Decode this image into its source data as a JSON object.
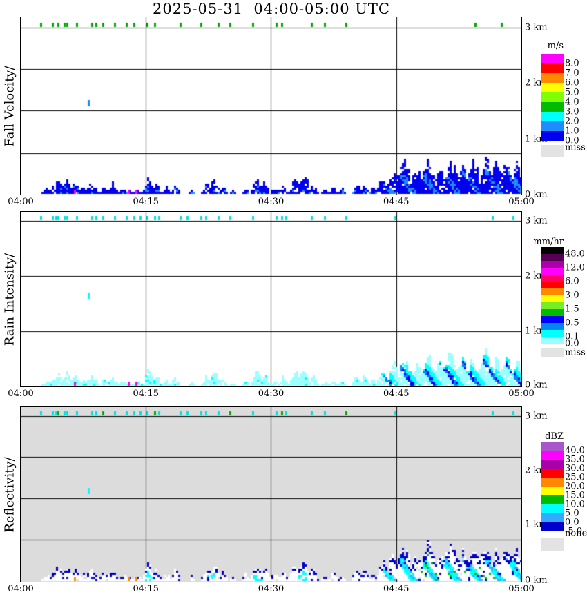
{
  "title": "2025-05-31  04:00-05:00 UTC",
  "x_axis": {
    "ticks": [
      "04:00",
      "04:15",
      "04:30",
      "04:45",
      "05:00"
    ]
  },
  "panels": [
    {
      "id": "fall-velocity",
      "label": "Fall Velocity/",
      "y_labels": [
        "3 km",
        "2 km",
        "1 km",
        "0 km"
      ],
      "legend": {
        "title": "m/s",
        "cells": [
          {
            "color": "#FF00FF",
            "label": "8.0"
          },
          {
            "color": "#FF0000",
            "label": "7.0"
          },
          {
            "color": "#FF8800",
            "label": "6.0"
          },
          {
            "color": "#FFFF00",
            "label": "5.0"
          },
          {
            "color": "#7FFF00",
            "label": "4.0"
          },
          {
            "color": "#00BB00",
            "label": "3.0"
          },
          {
            "color": "#00FFFF",
            "label": "2.0"
          },
          {
            "color": "#1C8CFF",
            "label": "1.0"
          },
          {
            "color": "#0000EE",
            "label": "0.0"
          }
        ],
        "missing": {
          "color": "#E3E3E3",
          "label": "miss"
        }
      }
    },
    {
      "id": "rain-intensity",
      "label": "Rain Intensity/",
      "y_labels": [
        "3 km",
        "2 km",
        "1 km",
        "0 km"
      ],
      "legend": {
        "title": "mm/hr",
        "cells": [
          {
            "color": "#000000",
            "label": "48.0"
          },
          {
            "color": "#550055",
            "label": ""
          },
          {
            "color": "#AA00AA",
            "label": "12.0"
          },
          {
            "color": "#FF00FF",
            "label": ""
          },
          {
            "color": "#FF0066",
            "label": "6.0"
          },
          {
            "color": "#FF0000",
            "label": ""
          },
          {
            "color": "#FF8800",
            "label": "3.0"
          },
          {
            "color": "#FFFF00",
            "label": ""
          },
          {
            "color": "#77EE22",
            "label": "1.5"
          },
          {
            "color": "#00BB00",
            "label": ""
          },
          {
            "color": "#0000FF",
            "label": "0.5"
          },
          {
            "color": "#0088EE",
            "label": ""
          },
          {
            "color": "#00FFFF",
            "label": "0.1"
          },
          {
            "color": "#99FFFF",
            "label": "0.0"
          }
        ],
        "missing": {
          "color": "#E3E3E3",
          "label": "miss"
        }
      }
    },
    {
      "id": "reflectivity",
      "label": "Reflectivity/",
      "y_labels": [
        "3 km",
        "2 km",
        "1 km",
        "0 km"
      ],
      "legend": {
        "title": "dBZ",
        "cells": [
          {
            "color": "#AA55CC",
            "label": "40.0"
          },
          {
            "color": "#FF00FF",
            "label": "35.0"
          },
          {
            "color": "#AA00AA",
            "label": "30.0"
          },
          {
            "color": "#FF0000",
            "label": "25.0"
          },
          {
            "color": "#FF8800",
            "label": "20.0"
          },
          {
            "color": "#FFFF00",
            "label": "15.0"
          },
          {
            "color": "#00BB00",
            "label": "10.0"
          },
          {
            "color": "#00FFFF",
            "label": "5.0"
          },
          {
            "color": "#33AAFF",
            "label": "0.0"
          },
          {
            "color": "#0000CC",
            "label": "-5.0"
          }
        ],
        "missing": {
          "color": "#E3E3E3",
          "label": "none"
        }
      }
    }
  ],
  "chart_data": {
    "type": "heatmap",
    "title": "2025-05-31  04:00-05:00 UTC",
    "x_axis": {
      "ticks": [
        "04:00",
        "04:15",
        "04:30",
        "04:45",
        "05:00"
      ],
      "range_min": [
        0,
        60
      ]
    },
    "y_axis": {
      "ticks": [
        "0 km",
        "1 km",
        "2 km",
        "3 km"
      ],
      "range_km": [
        0,
        3.2
      ]
    },
    "panels": [
      {
        "name": "Fall Velocity",
        "units": "m/s",
        "scale_values": [
          8.0,
          7.0,
          6.0,
          5.0,
          4.0,
          3.0,
          2.0,
          1.0,
          0.0
        ],
        "marker_color": "#00AA00",
        "top_markers_min": [
          2.3,
          3.7,
          4.4,
          5.1,
          5.5,
          6.6,
          8.4,
          8.9,
          9.8,
          11.2,
          12.6,
          13.5,
          15.1,
          16.0,
          19.0,
          21.5,
          23.6,
          25.0,
          27.7,
          30.5,
          31.2,
          34.8,
          36.3,
          38.9,
          54.4,
          57.5
        ]
      },
      {
        "name": "Rain Intensity",
        "units": "mm/hr",
        "scale_values": [
          48.0,
          12.0,
          6.0,
          3.0,
          1.5,
          0.5,
          0.1,
          0.0
        ],
        "marker_color": "#00E0E0",
        "top_markers_min": [
          2.3,
          3.7,
          4.1,
          4.4,
          5.1,
          5.5,
          6.6,
          8.4,
          8.9,
          9.8,
          11.2,
          12.6,
          13.5,
          14.2,
          15.1,
          16.0,
          16.5,
          19.0,
          19.9,
          21.5,
          22.1,
          23.6,
          25.0,
          27.7,
          30.5,
          31.2,
          31.7,
          34.8,
          36.3,
          38.9,
          44.8,
          56.4,
          58.9
        ]
      },
      {
        "name": "Reflectivity",
        "units": "dBZ",
        "scale_values": [
          40.0,
          35.0,
          30.0,
          25.0,
          20.0,
          15.0,
          10.0,
          5.0,
          0.0,
          -5.0
        ],
        "marker_color": "#00E0E0",
        "green_markers_min": [
          4.4,
          9.8,
          16.0,
          25.0,
          31.2,
          38.9
        ],
        "top_markers_min": [
          2.3,
          3.7,
          4.1,
          4.4,
          5.1,
          5.5,
          6.6,
          8.4,
          8.9,
          9.8,
          11.2,
          12.6,
          13.5,
          14.2,
          15.1,
          16.0,
          16.5,
          19.0,
          19.9,
          21.5,
          22.1,
          23.6,
          25.0,
          27.7,
          30.5,
          31.2,
          31.7,
          34.8,
          36.3,
          38.9,
          44.8,
          56.4,
          58.9
        ]
      }
    ],
    "echo_bumps": [
      [
        3.2,
        0.8,
        0.1
      ],
      [
        4.5,
        1.2,
        0.22
      ],
      [
        5.5,
        0.8,
        0.28
      ],
      [
        6.5,
        1.0,
        0.18
      ],
      [
        7.5,
        0.8,
        0.12
      ],
      [
        8.5,
        1.0,
        0.2
      ],
      [
        10.0,
        1.0,
        0.12
      ],
      [
        11.0,
        0.8,
        0.18
      ],
      [
        12.5,
        1.2,
        0.1
      ],
      [
        14.0,
        1.0,
        0.06
      ],
      [
        15.4,
        0.7,
        0.3
      ],
      [
        16.2,
        0.8,
        0.18
      ],
      [
        17.5,
        0.7,
        0.12
      ],
      [
        18.6,
        0.6,
        0.2
      ],
      [
        20.5,
        0.5,
        0.08
      ],
      [
        22.3,
        0.7,
        0.18
      ],
      [
        23.2,
        0.8,
        0.28
      ],
      [
        24.2,
        0.6,
        0.15
      ],
      [
        25.5,
        0.5,
        0.06
      ],
      [
        27.0,
        0.5,
        0.12
      ],
      [
        28.3,
        0.8,
        0.3
      ],
      [
        29.3,
        0.7,
        0.22
      ],
      [
        30.5,
        0.8,
        0.12
      ],
      [
        31.5,
        0.6,
        0.18
      ],
      [
        33.0,
        0.9,
        0.28
      ],
      [
        34.0,
        0.8,
        0.35
      ],
      [
        35.0,
        0.7,
        0.2
      ],
      [
        36.5,
        0.5,
        0.08
      ],
      [
        37.5,
        0.6,
        0.14
      ],
      [
        38.5,
        0.5,
        0.1
      ],
      [
        40.3,
        0.6,
        0.2
      ],
      [
        41.2,
        0.5,
        0.25
      ],
      [
        42.2,
        0.6,
        0.12
      ],
      [
        43.5,
        1.0,
        0.3
      ],
      [
        44.8,
        1.2,
        0.45
      ],
      [
        46.0,
        1.3,
        0.55
      ],
      [
        47.5,
        1.2,
        0.4
      ],
      [
        48.8,
        1.3,
        0.6
      ],
      [
        50.3,
        1.2,
        0.45
      ],
      [
        51.5,
        1.3,
        0.62
      ],
      [
        53.0,
        1.2,
        0.48
      ],
      [
        54.3,
        1.2,
        0.55
      ],
      [
        55.8,
        1.3,
        0.65
      ],
      [
        57.0,
        1.2,
        0.5
      ],
      [
        58.3,
        1.2,
        0.58
      ],
      [
        59.5,
        1.0,
        0.55
      ]
    ],
    "surface_specks_min": [
      6.4,
      12.8,
      13.7
    ],
    "elevated_echo": {
      "time_min": 8.0,
      "height_km": 1.65
    },
    "fall_streaks": {
      "onset_min": 43.2,
      "period_min": 2.6,
      "slope_min_per_km": 4.6
    },
    "cyan_core_times_min": [
      15.4,
      22.8,
      28.4,
      33.8
    ]
  }
}
